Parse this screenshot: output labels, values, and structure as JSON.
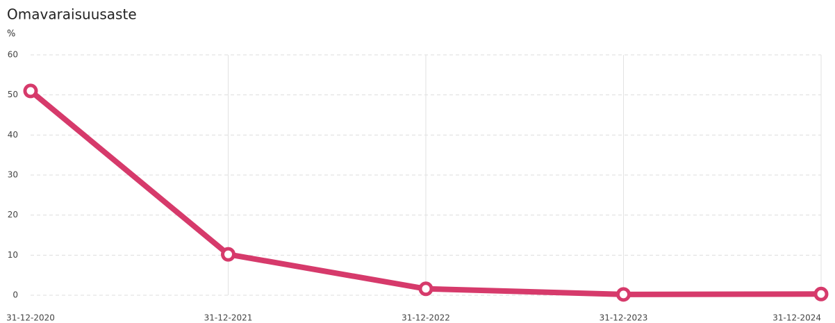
{
  "chart_data": {
    "type": "line",
    "title": "Omavaraisuusaste",
    "y_label": "%",
    "categories": [
      "31-12-2020",
      "31-12-2021",
      "31-12-2022",
      "31-12-2023",
      "31-12-2024"
    ],
    "series": [
      {
        "name": "Omavaraisuusaste",
        "color": "#d63a6b",
        "values": [
          51,
          10.2,
          1.6,
          0.2,
          0.3
        ]
      }
    ],
    "ylim": [
      0,
      60
    ],
    "yticks": [
      0,
      10,
      20,
      30,
      40,
      50,
      60
    ],
    "grid": true
  }
}
